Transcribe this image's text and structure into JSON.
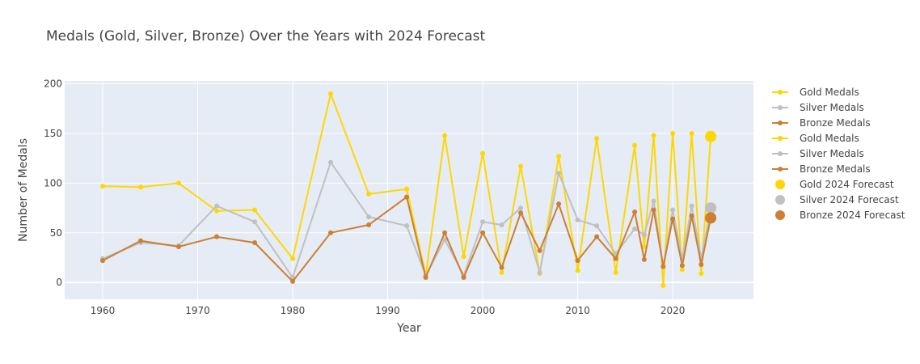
{
  "chart_data": {
    "type": "line",
    "title": "Medals (Gold, Silver, Bronze) Over the Years with 2024 Forecast",
    "xlabel": "Year",
    "ylabel": "Number of Medals",
    "xlim": [
      1956,
      2028.5
    ],
    "ylim": [
      -17,
      203
    ],
    "xticks": [
      1960,
      1970,
      1980,
      1990,
      2000,
      2010,
      2020
    ],
    "yticks": [
      0,
      50,
      100,
      150,
      200
    ],
    "grid": true,
    "legend_position": "right",
    "series": [
      {
        "name": "Gold Medals",
        "color": "#FFD700",
        "marker": "dot",
        "points": [
          [
            1960,
            97
          ],
          [
            1964,
            96
          ],
          [
            1968,
            100
          ],
          [
            1972,
            72
          ],
          [
            1976,
            73
          ],
          [
            1980,
            24
          ],
          [
            1984,
            190
          ],
          [
            1988,
            89
          ],
          [
            1992,
            94
          ]
        ]
      },
      {
        "name": "Silver Medals",
        "color": "#C0C0C0",
        "marker": "dot",
        "points": [
          [
            1960,
            24
          ],
          [
            1964,
            40
          ],
          [
            1968,
            37
          ],
          [
            1972,
            77
          ],
          [
            1976,
            61
          ],
          [
            1980,
            5
          ],
          [
            1984,
            121
          ],
          [
            1988,
            66
          ],
          [
            1992,
            57
          ]
        ]
      },
      {
        "name": "Bronze Medals",
        "color": "#CD7F32",
        "marker": "dot",
        "points": [
          [
            1960,
            22
          ],
          [
            1964,
            42
          ],
          [
            1968,
            36
          ],
          [
            1972,
            46
          ],
          [
            1976,
            40
          ],
          [
            1980,
            1
          ],
          [
            1984,
            50
          ],
          [
            1988,
            58
          ],
          [
            1992,
            86
          ]
        ]
      },
      {
        "name": "Gold Medals",
        "color": "#FFD700",
        "marker": "dot",
        "points": [
          [
            1992,
            94
          ],
          [
            1994,
            7
          ],
          [
            1996,
            148
          ],
          [
            1998,
            26
          ],
          [
            2000,
            130
          ],
          [
            2002,
            10
          ],
          [
            2004,
            117
          ],
          [
            2006,
            9
          ],
          [
            2008,
            127
          ],
          [
            2010,
            12
          ],
          [
            2012,
            145
          ],
          [
            2014,
            10
          ],
          [
            2016,
            138
          ],
          [
            2017,
            36
          ],
          [
            2018,
            148
          ],
          [
            2019,
            -3
          ],
          [
            2020,
            150
          ],
          [
            2021,
            13
          ],
          [
            2022,
            150
          ],
          [
            2023,
            9
          ],
          [
            2024,
            147
          ]
        ]
      },
      {
        "name": "Silver Medals",
        "color": "#C0C0C0",
        "marker": "dot",
        "points": [
          [
            1992,
            57
          ],
          [
            1994,
            7
          ],
          [
            1996,
            43
          ],
          [
            1998,
            7
          ],
          [
            2000,
            61
          ],
          [
            2002,
            58
          ],
          [
            2004,
            75
          ],
          [
            2006,
            10
          ],
          [
            2008,
            110
          ],
          [
            2010,
            63
          ],
          [
            2012,
            57
          ],
          [
            2014,
            29
          ],
          [
            2016,
            54
          ],
          [
            2017,
            48
          ],
          [
            2018,
            82
          ],
          [
            2019,
            16
          ],
          [
            2020,
            73
          ],
          [
            2021,
            24
          ],
          [
            2022,
            77
          ],
          [
            2023,
            24
          ],
          [
            2024,
            75
          ]
        ]
      },
      {
        "name": "Bronze Medals",
        "color": "#CD7F32",
        "marker": "dot",
        "points": [
          [
            1992,
            86
          ],
          [
            1994,
            5
          ],
          [
            1996,
            50
          ],
          [
            1998,
            5
          ],
          [
            2000,
            50
          ],
          [
            2002,
            15
          ],
          [
            2004,
            70
          ],
          [
            2006,
            32
          ],
          [
            2008,
            79
          ],
          [
            2010,
            22
          ],
          [
            2012,
            46
          ],
          [
            2014,
            24
          ],
          [
            2016,
            71
          ],
          [
            2017,
            23
          ],
          [
            2018,
            73
          ],
          [
            2019,
            16
          ],
          [
            2020,
            64
          ],
          [
            2021,
            17
          ],
          [
            2022,
            67
          ],
          [
            2023,
            18
          ],
          [
            2024,
            65
          ]
        ]
      },
      {
        "name": "Gold 2024 Forecast",
        "color": "#FFD700",
        "marker": "big",
        "points": [
          [
            2024,
            147
          ]
        ]
      },
      {
        "name": "Silver 2024 Forecast",
        "color": "#C0C0C0",
        "marker": "big",
        "points": [
          [
            2024,
            75
          ]
        ]
      },
      {
        "name": "Bronze 2024 Forecast",
        "color": "#CD7F32",
        "marker": "big",
        "points": [
          [
            2024,
            65
          ]
        ]
      }
    ]
  }
}
